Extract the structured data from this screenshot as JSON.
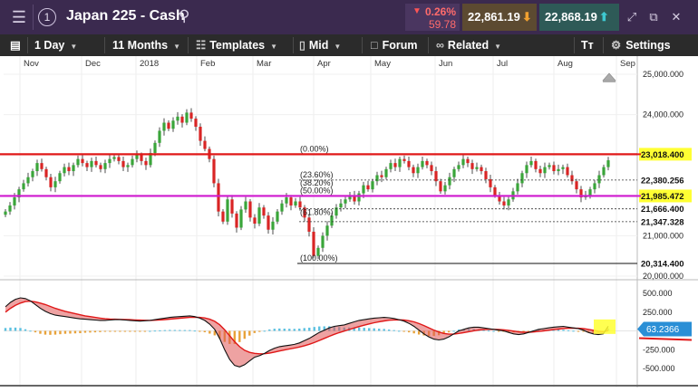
{
  "header": {
    "title": "Japan 225 - Cash",
    "change_pct": "0.26%",
    "change_pts": "59.78",
    "sell_price": "22,861.19",
    "buy_price": "22,868.19"
  },
  "toolbar": {
    "interval": "1 Day",
    "range": "11 Months",
    "templates": "Templates",
    "price_type": "Mid",
    "forum": "Forum",
    "related": "Related",
    "settings": "Settings"
  },
  "chart_data": {
    "type": "candlestick",
    "instrument": "Japan 225 - Cash",
    "x_labels": [
      "Nov",
      "Dec",
      "2018",
      "Feb",
      "Mar",
      "Apr",
      "May",
      "Jun",
      "Jul",
      "Aug",
      "Sep"
    ],
    "y_ticks": [
      "25,000.000",
      "24,000.000",
      "22,000.000",
      "21,000.000",
      "20,000.000"
    ],
    "ylim": [
      20000,
      25000
    ],
    "price_labels": {
      "resistance": "23,018.400",
      "fib_236": "22,380.256",
      "support": "21,985.472",
      "fib_618": "21,666.400",
      "fib_786": "21,347.328",
      "low": "20,314.400"
    },
    "fib_labels": [
      "(0.00%)",
      "(23.60%)",
      "(38.20%)",
      "(50.00%)",
      "(61.80%)",
      "(100.00%)"
    ],
    "horizontal_lines": [
      {
        "label": "resistance",
        "value": 23018.4,
        "color": "#e01818"
      },
      {
        "label": "support",
        "value": 21985.472,
        "color": "#d01ad0"
      }
    ],
    "closes": [
      21600,
      21750,
      21950,
      22150,
      22300,
      22450,
      22600,
      22800,
      22650,
      22450,
      22200,
      22350,
      22550,
      22700,
      22600,
      22750,
      22900,
      22800,
      22700,
      22850,
      22750,
      22650,
      22800,
      22900,
      22950,
      22850,
      22700,
      22750,
      22900,
      23000,
      22850,
      22750,
      23050,
      23300,
      23600,
      23800,
      23650,
      23850,
      23950,
      23800,
      24050,
      23900,
      23700,
      23350,
      23150,
      22900,
      22300,
      21600,
      21350,
      21900,
      21550,
      21200,
      21650,
      21850,
      21450,
      21300,
      21700,
      21500,
      21150,
      21350,
      21600,
      21800,
      21950,
      21750,
      21850,
      21700,
      21450,
      21100,
      20500,
      20700,
      21000,
      21250,
      21500,
      21700,
      21800,
      21900,
      22000,
      21850,
      22050,
      22250,
      22150,
      22350,
      22500,
      22450,
      22650,
      22800,
      22700,
      22900,
      22850,
      22700,
      22550,
      22700,
      22850,
      22750,
      22600,
      22350,
      22100,
      22250,
      22450,
      22650,
      22750,
      22900,
      22800,
      22650,
      22700,
      22600,
      22400,
      22200,
      22000,
      21850,
      21750,
      21900,
      22100,
      22300,
      22550,
      22750,
      22850,
      22650,
      22550,
      22700,
      22750,
      22600,
      22650,
      22700,
      22500,
      22350,
      22150,
      21950,
      22000,
      22150,
      22300,
      22500,
      22700,
      22869
    ],
    "indicator": {
      "y_ticks": [
        "500.000",
        "250.000",
        "-250.000",
        "-500.000"
      ],
      "ylim": [
        -500,
        500
      ],
      "current_value": "63.2366",
      "macd": [
        320,
        380,
        420,
        440,
        430,
        400,
        350,
        300,
        260,
        230,
        210,
        200,
        190,
        180,
        170,
        160,
        155,
        150,
        145,
        140,
        140,
        145,
        150,
        150,
        145,
        140,
        135,
        130,
        135,
        140,
        150,
        160,
        170,
        180,
        185,
        190,
        195,
        200,
        190,
        170,
        140,
        90,
        20,
        -100,
        -250,
        -380,
        -460,
        -480,
        -450,
        -400,
        -350,
        -330,
        -300,
        -260,
        -230,
        -210,
        -200,
        -190,
        -180,
        -160,
        -130,
        -100,
        -60,
        -20,
        10,
        40,
        60,
        70,
        80,
        100,
        120,
        140,
        150,
        160,
        170,
        175,
        180,
        175,
        165,
        150,
        130,
        100,
        60,
        10,
        -40,
        -80,
        -110,
        -120,
        -110,
        -80,
        -40,
        0,
        20,
        40,
        50,
        50,
        40,
        30,
        20,
        10,
        0,
        -20,
        -40,
        -50,
        -40,
        -20,
        0,
        20,
        30,
        40,
        50,
        55,
        60,
        50,
        40,
        30,
        10,
        -20,
        -40,
        -50,
        -40,
        63
      ],
      "signal": [
        250,
        300,
        340,
        370,
        390,
        395,
        385,
        370,
        350,
        325,
        300,
        280,
        260,
        245,
        230,
        215,
        200,
        190,
        180,
        170,
        162,
        157,
        155,
        153,
        151,
        149,
        146,
        143,
        141,
        140,
        142,
        146,
        151,
        157,
        163,
        169,
        175,
        180,
        182,
        180,
        172,
        156,
        128,
        82,
        16,
        -64,
        -143,
        -210,
        -258,
        -286,
        -299,
        -305,
        -304,
        -295,
        -282,
        -267,
        -254,
        -241,
        -229,
        -215,
        -198,
        -178,
        -155,
        -128,
        -100,
        -72,
        -46,
        -23,
        -3,
        18,
        38,
        58,
        76,
        93,
        108,
        122,
        133,
        142,
        146,
        147,
        144,
        135,
        120,
        98,
        71,
        41,
        11,
        -15,
        -34,
        -43,
        -42,
        -34,
        -23,
        -11,
        1,
        11,
        17,
        20,
        20,
        18,
        14,
        7,
        -3,
        -13,
        -18,
        -18,
        -14,
        -7,
        0,
        8,
        17,
        24,
        31,
        35,
        36,
        35,
        30,
        20,
        8,
        -4,
        -11,
        4
      ]
    }
  }
}
